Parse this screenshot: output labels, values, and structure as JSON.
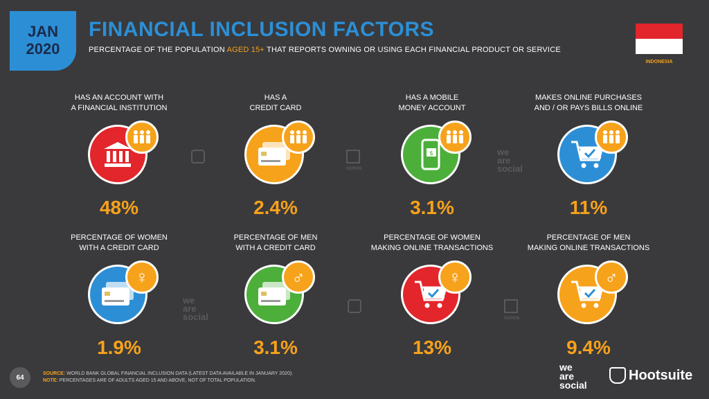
{
  "header": {
    "month": "JAN",
    "year": "2020",
    "title": "FINANCIAL INCLUSION FACTORS",
    "subtitle_pre": "PERCENTAGE OF THE POPULATION ",
    "subtitle_hl": "AGED 15+",
    "subtitle_post": " THAT REPORTS OWNING OR USING EACH FINANCIAL PRODUCT OR SERVICE",
    "country": "INDONESIA"
  },
  "cards": [
    {
      "label_1": "HAS AN ACCOUNT WITH",
      "label_2": "A FINANCIAL INSTITUTION",
      "value": "48%",
      "icon": "bank-icon",
      "badge": "people-icon",
      "color": "#e2262b"
    },
    {
      "label_1": "HAS A",
      "label_2": "CREDIT CARD",
      "value": "2.4%",
      "icon": "credit-card-icon",
      "badge": "people-icon",
      "color": "#f7a21b"
    },
    {
      "label_1": "HAS A MOBILE",
      "label_2": "MONEY ACCOUNT",
      "value": "3.1%",
      "icon": "mobile-money-icon",
      "badge": "people-icon",
      "color": "#4caf3a"
    },
    {
      "label_1": "MAKES ONLINE PURCHASES",
      "label_2": "AND / OR PAYS BILLS ONLINE",
      "value": "11%",
      "icon": "shopping-cart-icon",
      "badge": "people-icon",
      "color": "#2c8fd6"
    },
    {
      "label_1": "PERCENTAGE OF WOMEN",
      "label_2": "WITH A CREDIT CARD",
      "value": "1.9%",
      "icon": "credit-card-icon",
      "badge": "female-icon",
      "color": "#2c8fd6"
    },
    {
      "label_1": "PERCENTAGE OF MEN",
      "label_2": "WITH A CREDIT CARD",
      "value": "3.1%",
      "icon": "credit-card-icon",
      "badge": "male-icon",
      "color": "#4caf3a"
    },
    {
      "label_1": "PERCENTAGE OF WOMEN",
      "label_2": "MAKING ONLINE TRANSACTIONS",
      "value": "13%",
      "icon": "shopping-cart-icon",
      "badge": "female-icon",
      "color": "#e2262b"
    },
    {
      "label_1": "PERCENTAGE OF MEN",
      "label_2": "MAKING ONLINE TRANSACTIONS",
      "value": "9.4%",
      "icon": "shopping-cart-icon",
      "badge": "male-icon",
      "color": "#f7a21b"
    }
  ],
  "watermarks": {
    "we_are_social": [
      "we",
      "are",
      "social"
    ],
    "kepios": "KEPIOS"
  },
  "footer": {
    "page_number": "64",
    "source_key": "SOURCE:",
    "source_text": " WORLD BANK GLOBAL FINANCIAL INCLUSION DATA (LATEST DATA AVAILABLE IN JANUARY 2020).",
    "note_key": "NOTE:",
    "note_text": " PERCENTAGES ARE OF ADULTS AGED 15 AND ABOVE, NOT OF TOTAL POPULATION.",
    "brand_1": [
      "we",
      "are",
      "social"
    ],
    "brand_2": "Hootsuite"
  }
}
